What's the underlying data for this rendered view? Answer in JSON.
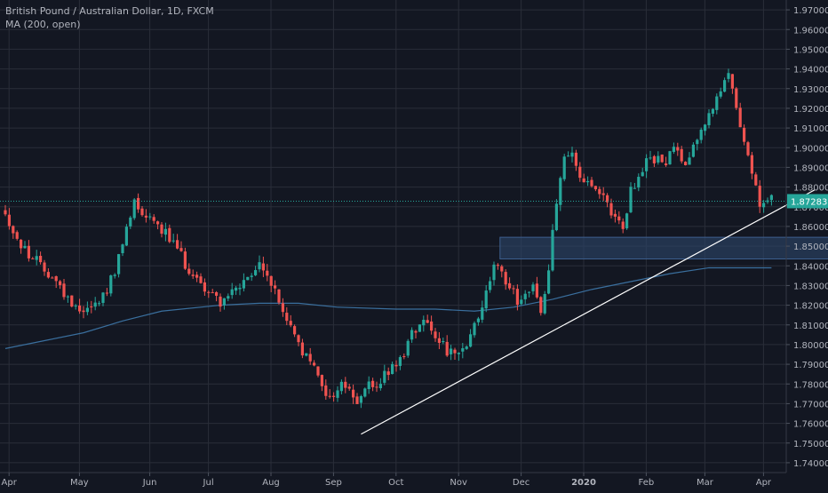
{
  "header": {
    "symbol_line": "British Pound / Australian Dollar, 1D, FXCM",
    "indicator_line": "MA (200, open)"
  },
  "colors": {
    "background": "#131722",
    "grid": "#2a2e39",
    "axis_text": "#b2b5be",
    "up": "#26a69a",
    "down": "#ef5350",
    "ma": "#3a6f9e",
    "zone_fill": "#2b4266",
    "zone_stroke": "#3d5f8f",
    "trendline": "#ffffff",
    "price_label_bg": "#26a69a"
  },
  "chart_data": {
    "type": "candlestick",
    "ylim": [
      1.735,
      1.975
    ],
    "y_ticks": [
      "1.97000",
      "1.96000",
      "1.95000",
      "1.94000",
      "1.93000",
      "1.92000",
      "1.91000",
      "1.90000",
      "1.89000",
      "1.88000",
      "1.87000",
      "1.86000",
      "1.85000",
      "1.84000",
      "1.83000",
      "1.82000",
      "1.81000",
      "1.80000",
      "1.79000",
      "1.78000",
      "1.77000",
      "1.76000",
      "1.75000",
      "1.74000"
    ],
    "x_ticks": [
      "Apr",
      "May",
      "Jun",
      "Jul",
      "Aug",
      "Sep",
      "Oct",
      "Nov",
      "Dec",
      "2020",
      "Feb",
      "Mar",
      "Apr"
    ],
    "last_price": "1.87283",
    "last_price_value": 1.87283,
    "close_path": [
      [
        0,
        1.866
      ],
      [
        4,
        1.85
      ],
      [
        8,
        1.842
      ],
      [
        12,
        1.835
      ],
      [
        16,
        1.823
      ],
      [
        20,
        1.818
      ],
      [
        24,
        1.822
      ],
      [
        28,
        1.836
      ],
      [
        31,
        1.858
      ],
      [
        33,
        1.873
      ],
      [
        35,
        1.868
      ],
      [
        39,
        1.862
      ],
      [
        43,
        1.851
      ],
      [
        47,
        1.838
      ],
      [
        51,
        1.829
      ],
      [
        55,
        1.822
      ],
      [
        58,
        1.826
      ],
      [
        62,
        1.832
      ],
      [
        65,
        1.84
      ],
      [
        67,
        1.836
      ],
      [
        69,
        1.826
      ],
      [
        73,
        1.808
      ],
      [
        77,
        1.793
      ],
      [
        80,
        1.785
      ],
      [
        83,
        1.772
      ],
      [
        86,
        1.78
      ],
      [
        88,
        1.778
      ],
      [
        90,
        1.769
      ],
      [
        92,
        1.778
      ],
      [
        95,
        1.78
      ],
      [
        98,
        1.786
      ],
      [
        101,
        1.792
      ],
      [
        104,
        1.806
      ],
      [
        107,
        1.814
      ],
      [
        110,
        1.806
      ],
      [
        113,
        1.797
      ],
      [
        116,
        1.793
      ],
      [
        119,
        1.803
      ],
      [
        122,
        1.82
      ],
      [
        125,
        1.84
      ],
      [
        128,
        1.833
      ],
      [
        131,
        1.823
      ],
      [
        133,
        1.826
      ],
      [
        135,
        1.831
      ],
      [
        137,
        1.814
      ],
      [
        139,
        1.84
      ],
      [
        141,
        1.874
      ],
      [
        143,
        1.898
      ],
      [
        145,
        1.895
      ],
      [
        147,
        1.885
      ],
      [
        150,
        1.879
      ],
      [
        153,
        1.873
      ],
      [
        156,
        1.866
      ],
      [
        158,
        1.856
      ],
      [
        160,
        1.878
      ],
      [
        162,
        1.884
      ],
      [
        165,
        1.896
      ],
      [
        168,
        1.892
      ],
      [
        171,
        1.898
      ],
      [
        174,
        1.894
      ],
      [
        177,
        1.905
      ],
      [
        180,
        1.918
      ],
      [
        183,
        1.927
      ],
      [
        185,
        1.937
      ],
      [
        187,
        1.921
      ],
      [
        189,
        1.905
      ],
      [
        191,
        1.887
      ],
      [
        193,
        1.87
      ],
      [
        195,
        1.872
      ],
      [
        196,
        1.873
      ]
    ],
    "moving_average": {
      "name": "MA (200, open)",
      "path": [
        [
          0,
          1.798
        ],
        [
          10,
          1.802
        ],
        [
          20,
          1.806
        ],
        [
          30,
          1.812
        ],
        [
          40,
          1.817
        ],
        [
          55,
          1.82
        ],
        [
          65,
          1.821
        ],
        [
          75,
          1.821
        ],
        [
          85,
          1.819
        ],
        [
          100,
          1.818
        ],
        [
          110,
          1.818
        ],
        [
          120,
          1.817
        ],
        [
          130,
          1.819
        ],
        [
          140,
          1.823
        ],
        [
          150,
          1.828
        ],
        [
          160,
          1.832
        ],
        [
          170,
          1.836
        ],
        [
          180,
          1.839
        ],
        [
          190,
          1.839
        ],
        [
          196,
          1.839
        ]
      ]
    },
    "zone": {
      "price_low": 1.8435,
      "price_high": 1.8545,
      "from_index": 127,
      "to_index": 220
    },
    "trendline": {
      "from": [
        91,
        1.7545
      ],
      "to": [
        207,
        1.8785
      ]
    }
  }
}
